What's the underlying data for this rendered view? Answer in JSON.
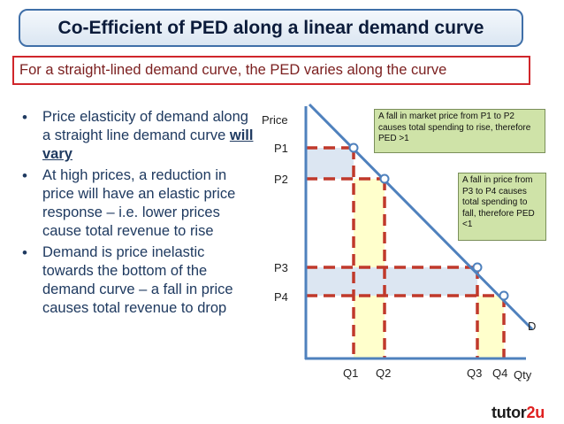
{
  "title": "Co-Efficient of PED along a linear demand curve",
  "subtitle": "For a straight-lined demand curve, the PED varies along the curve",
  "bullets": [
    {
      "pre": "Price elasticity of demand along a straight line demand curve ",
      "emph": "will vary",
      "post": ""
    },
    {
      "pre": "At high prices, a reduction in price will have an elastic price response – i.e. lower prices cause total revenue to rise",
      "emph": "",
      "post": ""
    },
    {
      "pre": "Demand is price inelastic towards the bottom of the demand curve – a fall in price causes total revenue to drop",
      "emph": "",
      "post": ""
    }
  ],
  "diagram": {
    "y_axis_label": "Price",
    "x_axis_label": "Qty",
    "curve_label": "D",
    "price_labels": {
      "P1": "P1",
      "P2": "P2",
      "P3": "P3",
      "P4": "P4"
    },
    "qty_labels": {
      "Q1": "Q1",
      "Q2": "Q2",
      "Q3": "Q3",
      "Q4": "Q4"
    },
    "callout_elastic": "A fall in market price from P1 to P2 causes total spending to rise, therefore PED >1",
    "callout_inelastic": "A fall in price from P3 to P4 causes total spending to fall, therefore PED <1"
  },
  "logo": {
    "part1": "tutor",
    "part2": "2u"
  },
  "colors": {
    "axis": "#4f81bd",
    "dash": "#c0392b",
    "point": "#4f81bd",
    "shade_blue": "#dce6f2",
    "shade_yellow": "#ffffcc",
    "callout_bg": "#cfe3a8"
  }
}
